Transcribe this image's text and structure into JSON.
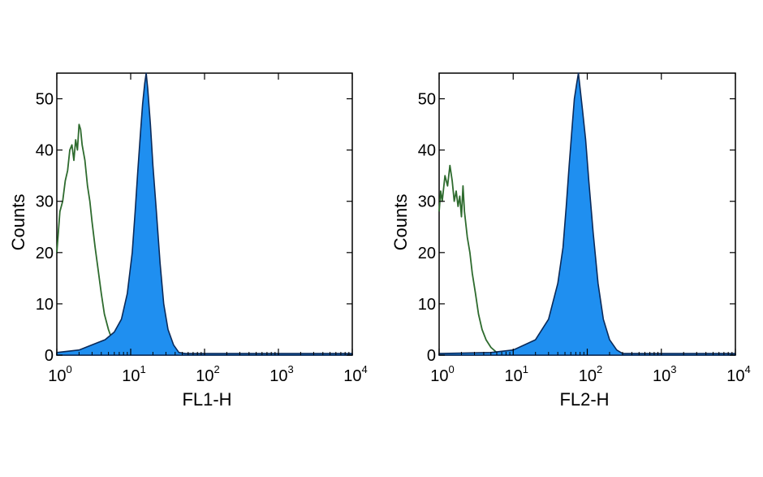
{
  "chart_data": [
    {
      "type": "area",
      "xscale": "log",
      "xlim": [
        1,
        10000
      ],
      "ylim": [
        0,
        55
      ],
      "xlabel": "FL1-H",
      "ylabel": "Counts",
      "xticks": [
        {
          "value": 1,
          "base": "10",
          "exp": "0"
        },
        {
          "value": 10,
          "base": "10",
          "exp": "1"
        },
        {
          "value": 100,
          "base": "10",
          "exp": "2"
        },
        {
          "value": 1000,
          "base": "10",
          "exp": "3"
        },
        {
          "value": 10000,
          "base": "10",
          "exp": "4"
        }
      ],
      "yticks": [
        0,
        10,
        20,
        30,
        40,
        50
      ],
      "grid": false,
      "series": [
        {
          "style": "line",
          "color": "#2e6b2e",
          "x": [
            1.0,
            1.1,
            1.2,
            1.3,
            1.4,
            1.5,
            1.6,
            1.7,
            1.8,
            1.9,
            2.0,
            2.1,
            2.2,
            2.4,
            2.6,
            2.8,
            3.0,
            3.3,
            3.6,
            4.0,
            4.4,
            5.0,
            5.6,
            6.5,
            8.0,
            10.0
          ],
          "y": [
            20,
            28,
            30,
            34,
            36,
            40,
            41,
            38,
            42,
            40,
            45,
            44,
            41,
            38,
            33,
            30,
            26,
            21,
            17,
            12,
            8,
            5,
            3,
            1,
            0.5,
            0
          ]
        },
        {
          "style": "filled",
          "color": "#1f8ff0",
          "x": [
            1.0,
            2.0,
            3.0,
            4.5,
            6.0,
            7.5,
            9.0,
            10.5,
            11.5,
            12.5,
            13.5,
            14.5,
            15.5,
            16.2,
            17.0,
            18.5,
            20.0,
            22.0,
            25.0,
            28.0,
            32.0,
            38.0,
            45.0,
            55.0,
            10000
          ],
          "y": [
            0.5,
            1.0,
            2.0,
            3.0,
            4.5,
            7.0,
            12.0,
            20.0,
            28.0,
            36.0,
            43.0,
            49.0,
            53.0,
            55.0,
            52.0,
            45.0,
            37.0,
            29.0,
            18.0,
            10.0,
            5.0,
            2.0,
            0.5,
            0.3,
            0.3
          ]
        }
      ]
    },
    {
      "type": "area",
      "xscale": "log",
      "xlim": [
        1,
        10000
      ],
      "ylim": [
        0,
        55
      ],
      "xlabel": "FL2-H",
      "ylabel": "Counts",
      "xticks": [
        {
          "value": 1,
          "base": "10",
          "exp": "0"
        },
        {
          "value": 10,
          "base": "10",
          "exp": "1"
        },
        {
          "value": 100,
          "base": "10",
          "exp": "2"
        },
        {
          "value": 1000,
          "base": "10",
          "exp": "3"
        },
        {
          "value": 10000,
          "base": "10",
          "exp": "4"
        }
      ],
      "yticks": [
        0,
        10,
        20,
        30,
        40,
        50
      ],
      "grid": false,
      "series": [
        {
          "style": "line",
          "color": "#2e6b2e",
          "x": [
            1.0,
            1.05,
            1.1,
            1.2,
            1.3,
            1.4,
            1.5,
            1.6,
            1.7,
            1.8,
            1.9,
            2.0,
            2.1,
            2.2,
            2.4,
            2.6,
            2.8,
            3.1,
            3.4,
            3.8,
            4.3,
            5.0,
            6.0,
            8.0
          ],
          "y": [
            28,
            32,
            30,
            35,
            33,
            37,
            34,
            30,
            32,
            29,
            31,
            27,
            33,
            28,
            23,
            20,
            16,
            12,
            8,
            5,
            3,
            1.5,
            0.5,
            0
          ]
        },
        {
          "style": "filled",
          "color": "#1f8ff0",
          "x": [
            1.0,
            5.0,
            10.0,
            20.0,
            30.0,
            40.0,
            47.0,
            52.0,
            57.0,
            62.0,
            67.0,
            72.0,
            76.0,
            80.0,
            86.0,
            95.0,
            105.0,
            120.0,
            140.0,
            165.0,
            200.0,
            250.0,
            300.0,
            10000
          ],
          "y": [
            0.3,
            0.5,
            1.0,
            3.0,
            7.0,
            14.0,
            21.0,
            29.0,
            37.0,
            44.0,
            50.0,
            53.0,
            55.0,
            52.0,
            48.0,
            42.0,
            34.0,
            24.0,
            14.0,
            7.0,
            3.0,
            1.0,
            0.3,
            0.3
          ]
        }
      ]
    }
  ]
}
